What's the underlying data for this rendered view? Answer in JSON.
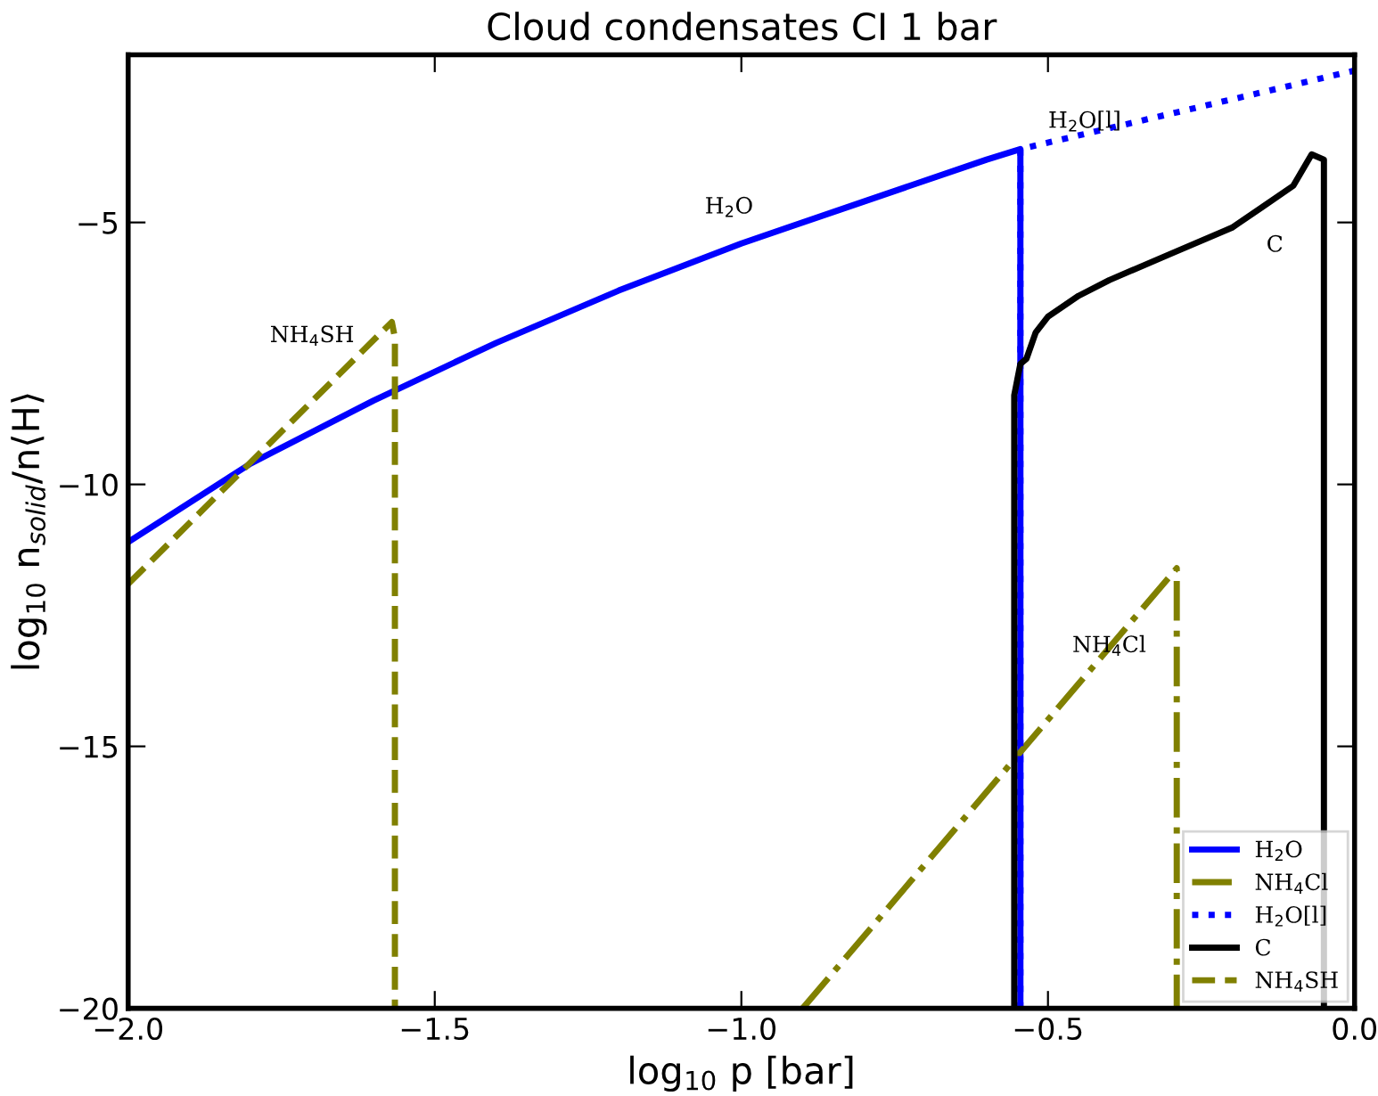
{
  "chart_data": {
    "type": "line",
    "title": "Cloud condensates CI 1 bar",
    "xlabel": "log$_{10}$ p [bar]",
    "ylabel": "log$_{10}$ n$_{solid}$/n⟨H⟩",
    "xlim": [
      -2.0,
      0.0
    ],
    "ylim": [
      -20,
      -1.8
    ],
    "xticks": [
      {
        "value": -2.0,
        "label": "−2.0"
      },
      {
        "value": -1.5,
        "label": "−1.5"
      },
      {
        "value": -1.0,
        "label": "−1.0"
      },
      {
        "value": -0.5,
        "label": "−0.5"
      },
      {
        "value": 0.0,
        "label": "0.0"
      }
    ],
    "yticks": [
      {
        "value": -20,
        "label": "−20"
      },
      {
        "value": -15,
        "label": "−15"
      },
      {
        "value": -10,
        "label": "−10"
      },
      {
        "value": -5,
        "label": "−5"
      }
    ],
    "grid": false,
    "legend": "bottom right",
    "marker": "none",
    "series": [
      {
        "name": "H$_{2}$O",
        "color": "#0000ff",
        "line_style": "solid",
        "x": [
          -2.0,
          -1.8,
          -1.6,
          -1.4,
          -1.2,
          -1.0,
          -0.8,
          -0.6,
          -0.545,
          -0.545
        ],
        "values": [
          -11.1,
          -9.6,
          -8.4,
          -7.3,
          -6.3,
          -5.4,
          -4.6,
          -3.8,
          -3.6,
          -20
        ]
      },
      {
        "name": "NH$_{4}$Cl",
        "color": "#808000",
        "line_style": "dashdot",
        "x": [
          -0.9,
          -0.29,
          -0.29
        ],
        "values": [
          -20,
          -11.6,
          -20
        ]
      },
      {
        "name": "H$_{2}$O[l]",
        "color": "#0000ff",
        "line_style": "dotted",
        "x": [
          -0.545,
          -0.545,
          0.0
        ],
        "values": [
          -20,
          -3.6,
          -2.1
        ]
      },
      {
        "name": "C",
        "color": "#000000",
        "line_style": "solid",
        "x": [
          -0.555,
          -0.555,
          -0.545,
          -0.535,
          -0.52,
          -0.5,
          -0.45,
          -0.4,
          -0.3,
          -0.2,
          -0.15,
          -0.1,
          -0.07,
          -0.05,
          -0.05
        ],
        "values": [
          -20,
          -8.3,
          -7.7,
          -7.6,
          -7.1,
          -6.8,
          -6.4,
          -6.1,
          -5.6,
          -5.1,
          -4.7,
          -4.3,
          -3.7,
          -3.8,
          -20
        ]
      },
      {
        "name": "NH$_{4}$SH",
        "color": "#808000",
        "line_style": "dashed",
        "x": [
          -2.0,
          -1.57,
          -1.565,
          -1.565
        ],
        "values": [
          -11.9,
          -6.9,
          -7.2,
          -20
        ]
      }
    ],
    "annotations": [
      "H$_{2}$O",
      "NH$_{4}$SH",
      "NH$_{4}$Cl",
      "H$_{2}$O[l]",
      "C"
    ]
  }
}
